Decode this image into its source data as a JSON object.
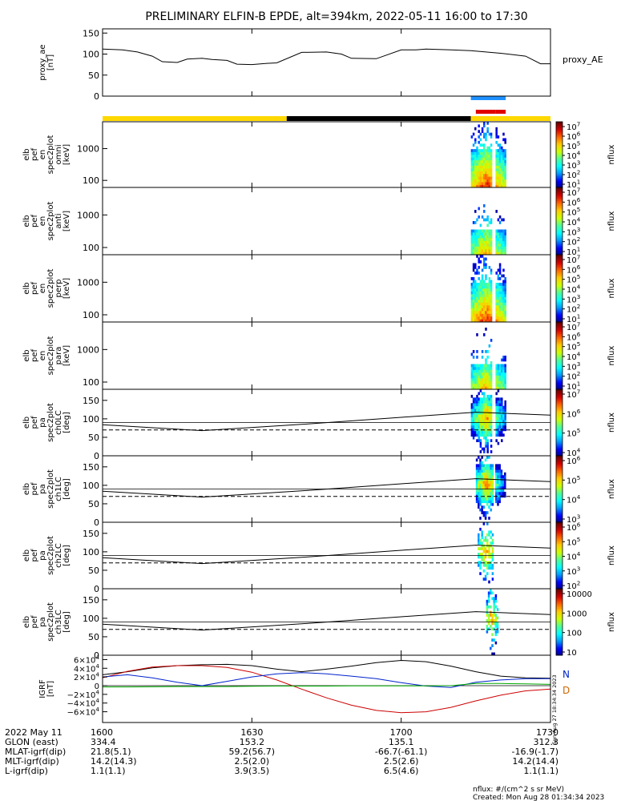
{
  "title": "PRELIMINARY ELFIN-B EPDE, alt=394km, 2022-05-11 16:00 to 17:30",
  "colors": {
    "bar_yellow": "#ffd800",
    "bar_black": "#000000",
    "sci_blue": "#1e90ff",
    "sci_red": "#e00000",
    "bx": "#0022cc",
    "by": "#00aa00",
    "bz": "#cc0000",
    "total": "#000000"
  },
  "time_axis": {
    "start": "16:00",
    "end": "17:30",
    "ticks": [
      "1600",
      "1630",
      "1700",
      "1730"
    ]
  },
  "status_bar": {
    "segments": [
      {
        "from": "16:00",
        "to": "16:37",
        "color": "yellow"
      },
      {
        "from": "16:37",
        "to": "17:14",
        "color": "black"
      },
      {
        "from": "17:14",
        "to": "17:30",
        "color": "yellow"
      }
    ],
    "science_zones": [
      {
        "from": "17:14",
        "to": "17:21",
        "color": "blue"
      },
      {
        "from": "17:15",
        "to": "17:19",
        "color": "red"
      },
      {
        "from": "17:19",
        "to": "17:21",
        "color": "red"
      }
    ]
  },
  "chart_data": [
    {
      "panel": "proxy_ae",
      "type": "line",
      "ylabel": [
        "proxy_ae",
        "[nT]"
      ],
      "right_label": "proxy_AE",
      "ylim": [
        0,
        160
      ],
      "yticks": [
        "150",
        "100",
        "50",
        "0"
      ],
      "x": [
        "16:00",
        "16:04",
        "16:07",
        "16:10",
        "16:12",
        "16:15",
        "16:17",
        "16:20",
        "16:22",
        "16:25",
        "16:27",
        "16:30",
        "16:33",
        "16:35",
        "16:40",
        "16:45",
        "16:48",
        "16:50",
        "16:55",
        "17:00",
        "17:03",
        "17:05",
        "17:10",
        "17:14",
        "17:17",
        "17:20",
        "17:25",
        "17:28",
        "17:30"
      ],
      "y": [
        112,
        110,
        105,
        95,
        82,
        80,
        88,
        90,
        87,
        85,
        76,
        75,
        78,
        79,
        104,
        105,
        100,
        90,
        89,
        110,
        110,
        112,
        110,
        108,
        105,
        102,
        95,
        77,
        77
      ]
    },
    {
      "panel": "elb_pef_en_spec2plot_omni",
      "type": "heatmap",
      "ylabel": [
        "elb",
        "pef",
        "en",
        "spec2plot",
        "omni",
        "[keV]"
      ],
      "yscale": "log",
      "yticks": [
        "1000",
        "100"
      ],
      "colorbar_label": "nflux",
      "colorbar_ticks": [
        "10^7",
        "10^6",
        "10^5",
        "10^4",
        "10^3",
        "10^2",
        "10^1"
      ],
      "active_interval": [
        "17:14",
        "17:21"
      ],
      "peak": "17:17"
    },
    {
      "panel": "elb_pef_en_spec2plot_anti",
      "type": "heatmap",
      "ylabel": [
        "elb",
        "pef",
        "en",
        "spec2plot",
        "anti",
        "[keV]"
      ],
      "yscale": "log",
      "yticks": [
        "1000",
        "100"
      ],
      "colorbar_label": "nflux",
      "colorbar_ticks": [
        "10^7",
        "10^6",
        "10^5",
        "10^4",
        "10^3",
        "10^2",
        "10^1"
      ],
      "active_interval": [
        "17:14",
        "17:21"
      ],
      "peak": "17:17"
    },
    {
      "panel": "elb_pef_en_spec2plot_perp",
      "type": "heatmap",
      "ylabel": [
        "elb",
        "pef",
        "en",
        "spec2plot",
        "perp",
        "[keV]"
      ],
      "yscale": "log",
      "yticks": [
        "1000",
        "100"
      ],
      "colorbar_label": "nflux",
      "colorbar_ticks": [
        "10^7",
        "10^6",
        "10^5",
        "10^4",
        "10^3",
        "10^2",
        "10^1"
      ],
      "active_interval": [
        "17:14",
        "17:21"
      ],
      "peak": "17:17"
    },
    {
      "panel": "elb_pef_en_spec2plot_para",
      "type": "heatmap",
      "ylabel": [
        "elb",
        "pef",
        "en",
        "spec2plot",
        "para",
        "[keV]"
      ],
      "yscale": "log",
      "yticks": [
        "1000",
        "100"
      ],
      "colorbar_label": "nflux",
      "colorbar_ticks": [
        "10^7",
        "10^6",
        "10^5",
        "10^4",
        "10^3",
        "10^2",
        "10^1"
      ],
      "active_interval": [
        "17:14",
        "17:21"
      ],
      "peak": "17:17"
    },
    {
      "panel": "elb_pef_pa_spec2plot_ch0LC",
      "type": "heatmap",
      "ylabel": [
        "elb",
        "pef",
        "pa",
        "spec2plot",
        "ch0LC",
        "[deg]"
      ],
      "ylim": [
        0,
        180
      ],
      "yticks": [
        "150",
        "100",
        "50",
        "0"
      ],
      "colorbar_label": "nflux",
      "colorbar_ticks": [
        "10^7",
        "10^6",
        "10^5",
        "10^4"
      ],
      "loss_cone_solid": {
        "x": [
          "16:00",
          "16:20",
          "16:40",
          "17:00",
          "17:15",
          "17:30"
        ],
        "y": [
          84,
          68,
          85,
          104,
          118,
          110
        ]
      },
      "loss_cone_dashed": 70,
      "active_interval": [
        "17:14",
        "17:21"
      ],
      "peak": "17:17"
    },
    {
      "panel": "elb_pef_pa_spec2plot_ch1LC",
      "type": "heatmap",
      "ylabel": [
        "elb",
        "pef",
        "pa",
        "spec2plot",
        "ch1LC",
        "[deg]"
      ],
      "ylim": [
        0,
        180
      ],
      "yticks": [
        "150",
        "100",
        "50",
        "0"
      ],
      "colorbar_label": "nflux",
      "colorbar_ticks": [
        "10^6",
        "10^5",
        "10^4",
        "10^3"
      ],
      "loss_cone_solid": {
        "x": [
          "16:00",
          "16:20",
          "16:40",
          "17:00",
          "17:15",
          "17:30"
        ],
        "y": [
          84,
          68,
          85,
          104,
          118,
          110
        ]
      },
      "loss_cone_dashed": 70,
      "active_interval": [
        "17:15",
        "17:21"
      ],
      "peak": "17:17"
    },
    {
      "panel": "elb_pef_pa_spec2plot_ch2LC",
      "type": "heatmap",
      "ylabel": [
        "elb",
        "pef",
        "pa",
        "spec2plot",
        "ch2LC",
        "[deg]"
      ],
      "ylim": [
        0,
        180
      ],
      "yticks": [
        "150",
        "100",
        "50",
        "0"
      ],
      "colorbar_label": "nflux",
      "colorbar_ticks": [
        "10^6",
        "10^5",
        "10^4",
        "10^3",
        "10^2"
      ],
      "loss_cone_solid": {
        "x": [
          "16:00",
          "16:20",
          "16:40",
          "17:00",
          "17:15",
          "17:30"
        ],
        "y": [
          84,
          68,
          85,
          104,
          118,
          110
        ]
      },
      "loss_cone_dashed": 70,
      "active_interval": [
        "17:15",
        "17:21"
      ],
      "peak": "17:17"
    },
    {
      "panel": "elb_pef_pa_spec2plot_ch3LC",
      "type": "heatmap",
      "ylabel": [
        "elb",
        "pef",
        "pa",
        "spec2plot",
        "ch3LC",
        "[deg]"
      ],
      "ylim": [
        0,
        180
      ],
      "yticks": [
        "150",
        "100",
        "50",
        "0"
      ],
      "colorbar_label": "nflux",
      "colorbar_ticks": [
        "10000",
        "1000",
        "100",
        "10"
      ],
      "loss_cone_solid": {
        "x": [
          "16:00",
          "16:20",
          "16:40",
          "17:00",
          "17:15",
          "17:30"
        ],
        "y": [
          84,
          68,
          85,
          104,
          118,
          110
        ]
      },
      "loss_cone_dashed": 70,
      "active_interval": [
        "17:16",
        "17:20"
      ],
      "peak": "17:18"
    },
    {
      "panel": "IGRF",
      "type": "line",
      "ylabel": [
        "IGRF",
        "[nT]"
      ],
      "ylim": [
        -70000,
        70000
      ],
      "yticks": [
        "6×10^4",
        "4×10^4",
        "2×10^4",
        "0",
        "−2×10^4",
        "−4×10^4",
        "−6×10^4"
      ],
      "legend": [
        "N",
        "D"
      ],
      "legend_colors": [
        "#0022cc",
        "#cc6600"
      ],
      "x": [
        "16:00",
        "16:05",
        "16:10",
        "16:15",
        "16:20",
        "16:25",
        "16:30",
        "16:35",
        "16:40",
        "16:45",
        "16:50",
        "16:55",
        "17:00",
        "17:05",
        "17:10",
        "17:15",
        "17:20",
        "17:25",
        "17:30"
      ],
      "series": [
        {
          "color": "total",
          "values": [
            25000,
            32000,
            41000,
            46000,
            48000,
            49000,
            46000,
            38000,
            32000,
            38000,
            45000,
            53000,
            58000,
            55000,
            45000,
            32000,
            22000,
            18000,
            17000
          ]
        },
        {
          "color": "bz",
          "values": [
            18000,
            33000,
            43000,
            46000,
            46000,
            42000,
            31000,
            13000,
            -8000,
            -28000,
            -45000,
            -57000,
            -62000,
            -60000,
            -50000,
            -35000,
            -22000,
            -12000,
            -8000
          ]
        },
        {
          "color": "bx",
          "values": [
            20000,
            25000,
            18000,
            8000,
            0,
            10000,
            20000,
            27000,
            30000,
            27000,
            22000,
            16000,
            7000,
            -1000,
            -4000,
            8000,
            13000,
            16000,
            16000
          ]
        },
        {
          "color": "by",
          "values": [
            -3000,
            -3000,
            -2500,
            -2000,
            -2000,
            -2000,
            -1500,
            -1000,
            -1000,
            -1000,
            -500,
            -500,
            -500,
            -500,
            0,
            5000,
            5000,
            4000,
            3000
          ]
        }
      ]
    }
  ],
  "footer": {
    "rows": [
      {
        "label": "2022 May 11",
        "values": [
          "1600",
          "1630",
          "1700",
          "1730"
        ]
      },
      {
        "label": "GLON (east)",
        "values": [
          "334.4",
          "153.2",
          "135.1",
          "312.3"
        ]
      },
      {
        "label": "MLAT-igrf(dip)",
        "values": [
          "21.8(5.1)",
          "59.2(56.7)",
          "-66.7(-61.1)",
          "-16.9(-1.7)"
        ]
      },
      {
        "label": "MLT-igrf(dip)",
        "values": [
          "14.2(14.3)",
          "2.5(2.0)",
          "2.5(2.6)",
          "14.2(14.4)"
        ]
      },
      {
        "label": "L-igrf(dip)",
        "values": [
          "1.1(1.1)",
          "3.9(3.5)",
          "6.5(4.6)",
          "1.1(1.1)"
        ]
      }
    ],
    "units_note": "nflux: #/(cm^2 s sr MeV)",
    "created": "Created: Mon Aug 28 01:34:34 2023",
    "side_stamp": "Sun Aug 27 18:34:34 2023"
  }
}
